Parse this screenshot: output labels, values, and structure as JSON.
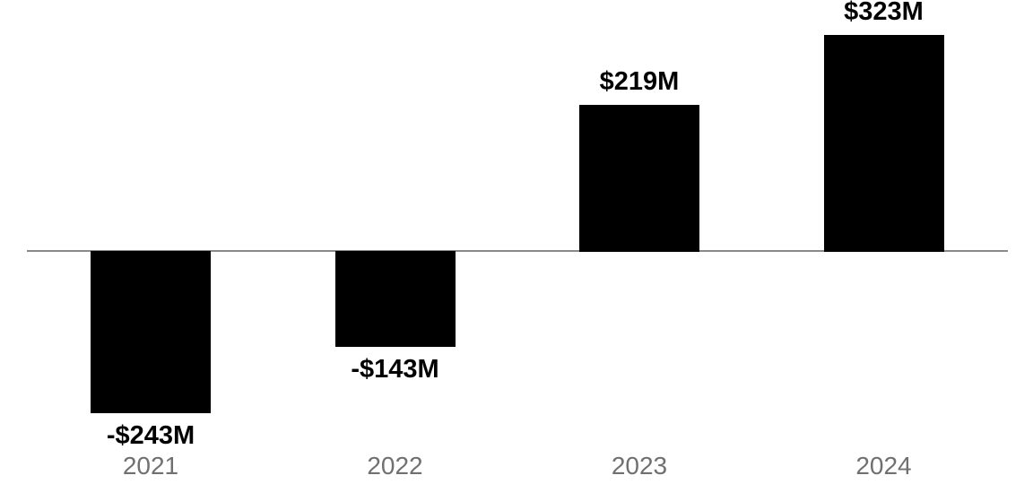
{
  "chart_data": {
    "type": "bar",
    "categories": [
      "2021",
      "2022",
      "2023",
      "2024"
    ],
    "values": [
      -243,
      -143,
      219,
      323
    ],
    "value_labels": [
      "-$243M",
      "-$143M",
      "$219M",
      "$323M"
    ],
    "unit": "USD millions ($M)",
    "title": "",
    "xlabel": "",
    "ylabel": "",
    "baseline": 0,
    "zero_line": true,
    "grid": "off",
    "legend": "none",
    "value_label_position": "outside bar ends",
    "bar_color": "#000000",
    "zero_line_color": "#8a8a8a",
    "value_label_color": "#000000",
    "category_label_color": "#707070",
    "background_color": "#ffffff"
  }
}
